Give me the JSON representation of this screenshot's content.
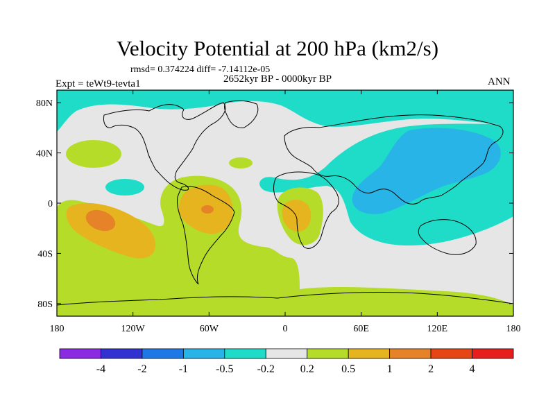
{
  "title": "Velocity Potential at 200 hPa (km2/s)",
  "stats_line": "rmsd= 0.374224 diff= -7.14112e-05",
  "period": "2652kyr BP - 0000kyr BP",
  "experiment": "Expt = teWt9-tevta1",
  "season": "ANN",
  "axes": {
    "lon_ticks": [
      "180",
      "120W",
      "60W",
      "0",
      "60E",
      "120E",
      "180"
    ],
    "lat_ticks": [
      "80N",
      "40N",
      "0",
      "40S",
      "80S"
    ],
    "lon_range": [
      -180,
      180
    ],
    "lat_range": [
      -90,
      90
    ]
  },
  "colorbar": {
    "colors": [
      "#8a2be2",
      "#3232d2",
      "#1e78e6",
      "#28b4e6",
      "#1edcc8",
      "#e6e6e6",
      "#b4dc28",
      "#e6b41e",
      "#e68228",
      "#e64614",
      "#e61e1e"
    ],
    "labels": [
      "-4",
      "-2",
      "-1",
      "-0.5",
      "-0.2",
      "0.2",
      "0.5",
      "1",
      "2",
      "4"
    ]
  }
}
